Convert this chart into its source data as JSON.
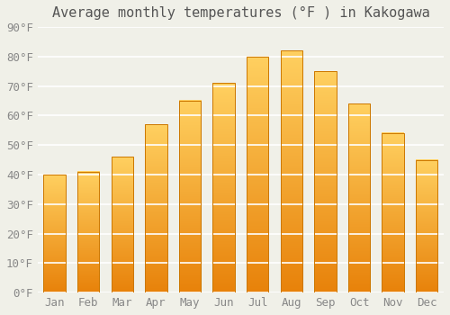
{
  "title": "Average monthly temperatures (°F ) in Kakogawa",
  "months": [
    "Jan",
    "Feb",
    "Mar",
    "Apr",
    "May",
    "Jun",
    "Jul",
    "Aug",
    "Sep",
    "Oct",
    "Nov",
    "Dec"
  ],
  "values": [
    40,
    41,
    46,
    57,
    65,
    71,
    80,
    82,
    75,
    64,
    54,
    45
  ],
  "bar_color_bottom": "#E8820A",
  "bar_color_top": "#FFD060",
  "ylim": [
    0,
    90
  ],
  "yticks": [
    0,
    10,
    20,
    30,
    40,
    50,
    60,
    70,
    80,
    90
  ],
  "ytick_labels": [
    "0°F",
    "10°F",
    "20°F",
    "30°F",
    "40°F",
    "50°F",
    "60°F",
    "70°F",
    "80°F",
    "90°F"
  ],
  "background_color": "#f0f0e8",
  "grid_color": "#ffffff",
  "title_fontsize": 11,
  "tick_fontsize": 9,
  "bar_edge_color": "#CC7700",
  "bar_width": 0.65
}
